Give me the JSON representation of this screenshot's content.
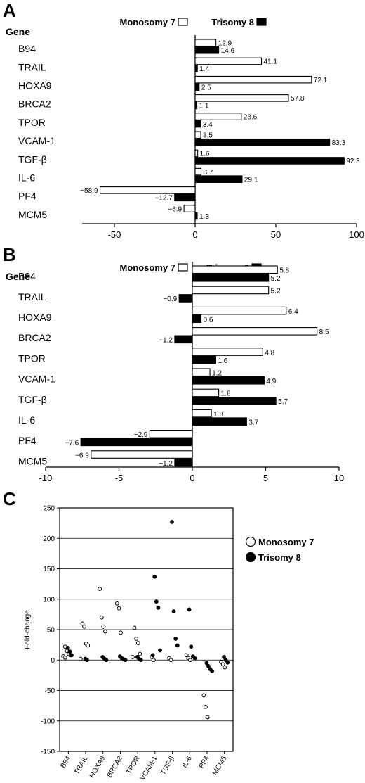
{
  "panels": {
    "a": {
      "letter": "A",
      "gene_header": "Gene",
      "legend_monosomy": "Monosomy 7",
      "legend_trisomy": "Trisomy 8"
    },
    "b": {
      "letter": "B",
      "gene_header": "Gene",
      "legend_monosomy": "Monosomy 7",
      "legend_trisomy": "Trisomy 8"
    },
    "c": {
      "letter": "C",
      "legend_monosomy": "Monosomy 7",
      "legend_trisomy": "Trisomy 8"
    }
  },
  "chart_data": [
    {
      "type": "bar",
      "orientation": "horizontal",
      "categories": [
        "B94",
        "TRAIL",
        "HOXA9",
        "BRCA2",
        "TPOR",
        "VCAM-1",
        "TGF-β",
        "IL-6",
        "PF4",
        "MCM5"
      ],
      "series": [
        {
          "name": "Monosomy 7",
          "fill": "#ffffff",
          "values": [
            12.9,
            41.1,
            72.1,
            57.8,
            28.6,
            3.5,
            1.6,
            3.7,
            -58.9,
            -6.9
          ],
          "labels": [
            "12.9",
            "41.1",
            "72.1",
            "57.8",
            "28.6",
            "3.5",
            "1.6",
            "3.7",
            "−58.9",
            "−6.9"
          ]
        },
        {
          "name": "Trisomy 8",
          "fill": "#000000",
          "values": [
            14.6,
            1.4,
            2.5,
            1.1,
            3.4,
            83.3,
            92.3,
            29.1,
            -12.7,
            1.3
          ],
          "labels": [
            "14.6",
            "1.4",
            "2.5",
            "1.1",
            "3.4",
            "83.3",
            "92.3",
            "29.1",
            "−12.7",
            "1.3"
          ]
        }
      ],
      "xlim": [
        -70,
        100
      ],
      "xticks": [
        -50,
        0,
        50,
        100
      ],
      "xtick_labels": [
        "-50",
        "0",
        "50",
        "100"
      ],
      "legend": "top"
    },
    {
      "type": "bar",
      "orientation": "horizontal",
      "categories": [
        "B94",
        "TRAIL",
        "HOXA9",
        "BRCA2",
        "TPOR",
        "VCAM-1",
        "TGF-β",
        "IL-6",
        "PF4",
        "MCM5"
      ],
      "series": [
        {
          "name": "Monosomy 7",
          "fill": "#ffffff",
          "values": [
            5.8,
            5.2,
            6.4,
            8.5,
            4.8,
            1.2,
            1.8,
            1.3,
            -2.9,
            -6.9
          ],
          "labels": [
            "5.8",
            "5.2",
            "6.4",
            "8.5",
            "4.8",
            "1.2",
            "1.8",
            "1.3",
            "−2.9",
            "−6.9"
          ]
        },
        {
          "name": "Trisomy 8",
          "fill": "#000000",
          "values": [
            5.2,
            -0.9,
            0.6,
            -1.2,
            1.6,
            4.9,
            5.7,
            3.7,
            -7.6,
            -1.2
          ],
          "labels": [
            "5.2",
            "−0.9",
            "0.6",
            "−1.2",
            "1.6",
            "4.9",
            "5.7",
            "3.7",
            "−7.6",
            "−1.2"
          ]
        }
      ],
      "xlim": [
        -10,
        10
      ],
      "xticks": [
        -10,
        -5,
        0,
        5,
        10
      ],
      "xtick_labels": [
        "-10",
        "-5",
        "0",
        "5",
        "10"
      ],
      "legend": "top"
    },
    {
      "type": "scatter",
      "categories": [
        "B94",
        "TRAIL",
        "HOXA9",
        "BRCA2",
        "TPOR",
        "VCAM-1",
        "TGF-β",
        "IL-6",
        "PF4",
        "MCM5"
      ],
      "ylabel": "Fold-change",
      "ylim": [
        -150,
        250
      ],
      "yticks": [
        -150,
        -100,
        -50,
        0,
        50,
        100,
        150,
        200,
        250
      ],
      "grid": "horizontal",
      "legend": "right",
      "series": [
        {
          "name": "Monosomy 7",
          "marker": "open-circle",
          "points": [
            [
              0,
              22
            ],
            [
              0,
              15
            ],
            [
              0,
              10
            ],
            [
              0,
              8
            ],
            [
              0,
              6
            ],
            [
              0,
              4
            ],
            [
              1,
              60
            ],
            [
              1,
              55
            ],
            [
              1,
              27
            ],
            [
              1,
              24
            ],
            [
              1,
              2
            ],
            [
              2,
              117
            ],
            [
              2,
              70
            ],
            [
              2,
              55
            ],
            [
              2,
              47
            ],
            [
              3,
              93
            ],
            [
              3,
              85
            ],
            [
              3,
              45
            ],
            [
              4,
              53
            ],
            [
              4,
              35
            ],
            [
              4,
              28
            ],
            [
              4,
              10
            ],
            [
              4,
              5
            ],
            [
              5,
              5
            ],
            [
              5,
              0
            ],
            [
              6,
              3
            ],
            [
              6,
              0
            ],
            [
              7,
              8
            ],
            [
              7,
              3
            ],
            [
              7,
              0
            ],
            [
              8,
              -58
            ],
            [
              8,
              -77
            ],
            [
              8,
              -94
            ],
            [
              9,
              -3
            ],
            [
              9,
              -7
            ],
            [
              9,
              -12
            ]
          ]
        },
        {
          "name": "Trisomy 8",
          "marker": "filled-circle",
          "points": [
            [
              0,
              20
            ],
            [
              0,
              14
            ],
            [
              0,
              8
            ],
            [
              1,
              2
            ],
            [
              1,
              0
            ],
            [
              2,
              5
            ],
            [
              2,
              2
            ],
            [
              2,
              0
            ],
            [
              3,
              6
            ],
            [
              3,
              3
            ],
            [
              3,
              1
            ],
            [
              3,
              0
            ],
            [
              4,
              5
            ],
            [
              4,
              2
            ],
            [
              4,
              0
            ],
            [
              5,
              137
            ],
            [
              5,
              96
            ],
            [
              5,
              86
            ],
            [
              5,
              16
            ],
            [
              5,
              8
            ],
            [
              6,
              227
            ],
            [
              6,
              80
            ],
            [
              6,
              35
            ],
            [
              6,
              24
            ],
            [
              7,
              83
            ],
            [
              7,
              22
            ],
            [
              7,
              6
            ],
            [
              7,
              3
            ],
            [
              8,
              -5
            ],
            [
              8,
              -10
            ],
            [
              8,
              -15
            ],
            [
              8,
              -18
            ],
            [
              9,
              5
            ],
            [
              9,
              0
            ],
            [
              9,
              -4
            ]
          ]
        }
      ]
    }
  ]
}
